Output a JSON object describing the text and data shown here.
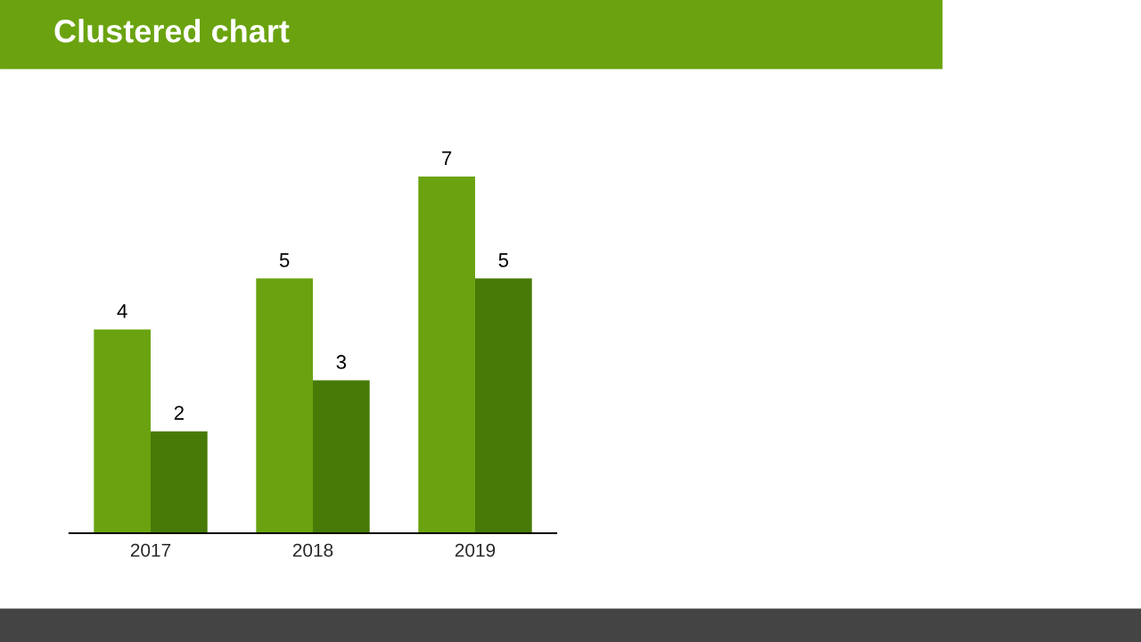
{
  "chart_data": {
    "type": "bar",
    "title": "Clustered chart",
    "categories": [
      "2017",
      "2018",
      "2019"
    ],
    "series": [
      {
        "color": "#6aa30f",
        "values": [
          4,
          5,
          7
        ]
      },
      {
        "color": "#477a06",
        "values": [
          2,
          3,
          5
        ]
      }
    ],
    "ylim": [
      0,
      7
    ],
    "data_labels": true,
    "tick_labels": "x",
    "grid": false,
    "legend": false
  }
}
